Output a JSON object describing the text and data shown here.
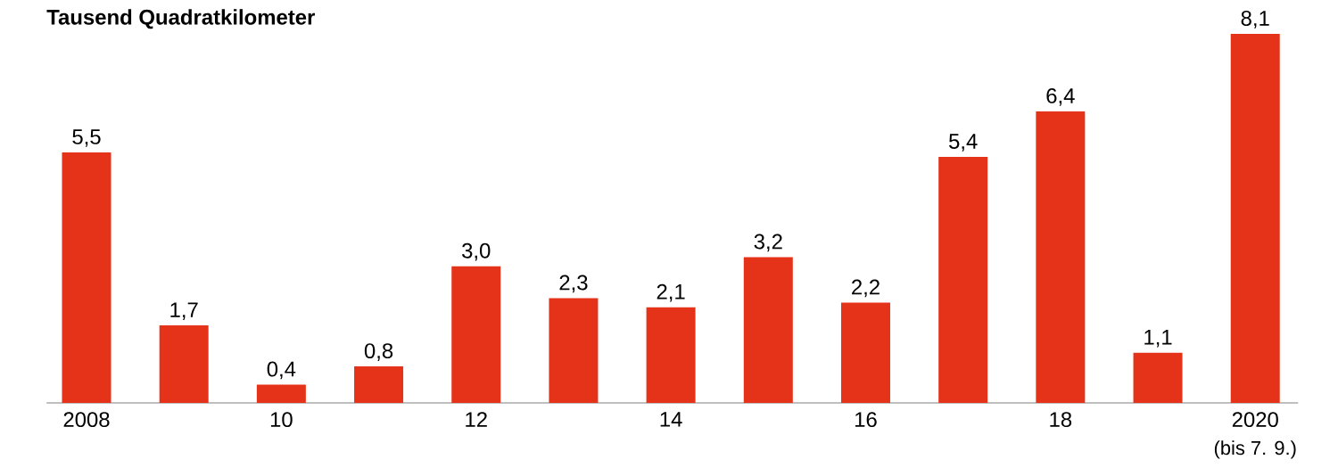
{
  "chart_data": {
    "type": "bar",
    "title": "Tausend Quadratkilometer",
    "categories": [
      "2008",
      null,
      "10",
      null,
      "12",
      null,
      "14",
      null,
      "16",
      null,
      "18",
      null,
      "2020"
    ],
    "values": [
      5.5,
      1.7,
      0.4,
      0.8,
      3.0,
      2.3,
      2.1,
      3.2,
      2.2,
      5.4,
      6.4,
      1.1,
      8.1
    ],
    "value_labels": [
      "5,5",
      "1,7",
      "0,4",
      "0,8",
      "3,0",
      "2,3",
      "2,1",
      "3,2",
      "2,2",
      "5,4",
      "6,4",
      "1,1",
      "8,1"
    ],
    "color": "#e5331a",
    "ylim": [
      0,
      8.1
    ],
    "tick_labels": "x",
    "grid": false,
    "annotations": [
      "(bis 7. 9.)"
    ]
  }
}
